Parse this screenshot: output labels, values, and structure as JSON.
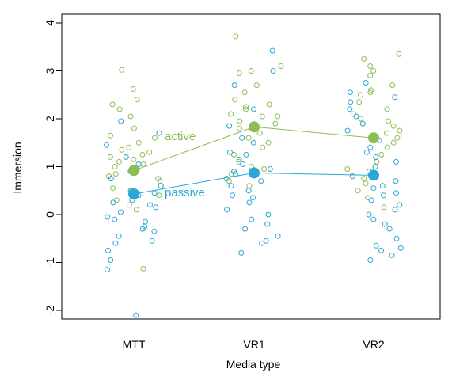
{
  "chart_data": {
    "type": "scatter",
    "xlabel": "Media type",
    "ylabel": "Immersion",
    "categories": [
      "MTT",
      "VR1",
      "VR2"
    ],
    "ylim": [
      -2.3,
      4.3
    ],
    "yticks": [
      -2,
      -1,
      0,
      1,
      2,
      3,
      4
    ],
    "colors": {
      "active": "#8cbd56",
      "passive": "#2ba7d4"
    },
    "series": [
      {
        "name": "active",
        "means": [
          0.92,
          1.83,
          1.6
        ],
        "points": [
          {
            "x": 1,
            "y": [
              2.62,
              2.4,
              2.3,
              2.2,
              2.05,
              1.8,
              1.65,
              1.6,
              1.5,
              1.4,
              1.35,
              1.3,
              1.25,
              1.2,
              1.15,
              1.1,
              1.05,
              1.0,
              0.95,
              0.9,
              0.85,
              0.8,
              0.75,
              0.7,
              0.55,
              0.5,
              0.4,
              0.3,
              0.2,
              0.1,
              -1.13,
              3.02
            ]
          },
          {
            "x": 2,
            "y": [
              3.72,
              3.1,
              3.0,
              2.95,
              2.7,
              2.55,
              2.4,
              2.3,
              2.25,
              2.2,
              2.1,
              2.05,
              1.95,
              1.9,
              1.85,
              1.8,
              1.7,
              1.6,
              1.5,
              1.4,
              1.25,
              1.1,
              1.0,
              0.85,
              0.7,
              0.6,
              0.95,
              2.05
            ]
          },
          {
            "x": 3,
            "y": [
              3.35,
              3.25,
              3.1,
              3.0,
              2.9,
              2.7,
              2.6,
              2.55,
              2.5,
              2.35,
              2.2,
              2.1,
              2.0,
              1.95,
              1.85,
              1.75,
              1.6,
              1.5,
              1.4,
              1.25,
              1.1,
              0.95,
              0.75,
              0.65,
              0.5,
              0.35,
              0.15,
              1.7
            ]
          }
        ]
      },
      {
        "name": "passive",
        "means": [
          0.43,
          0.87,
          0.82
        ],
        "points": [
          {
            "x": 1,
            "y": [
              1.95,
              1.7,
              1.45,
              1.2,
              1.05,
              0.9,
              0.75,
              0.6,
              0.5,
              0.45,
              0.4,
              0.3,
              0.25,
              0.2,
              0.15,
              0.05,
              -0.05,
              -0.1,
              -0.15,
              -0.25,
              -0.3,
              -0.35,
              -0.45,
              -0.55,
              -0.6,
              -0.75,
              -0.95,
              -1.15,
              -2.1
            ]
          },
          {
            "x": 2,
            "y": [
              3.42,
              3.0,
              2.7,
              2.2,
              1.85,
              1.6,
              1.5,
              1.3,
              1.25,
              1.15,
              1.05,
              0.95,
              0.9,
              0.85,
              0.75,
              0.7,
              0.6,
              0.5,
              0.4,
              0.35,
              0.25,
              0.1,
              0.0,
              -0.1,
              -0.2,
              -0.3,
              -0.45,
              -0.55,
              -0.6,
              -0.8
            ]
          },
          {
            "x": 3,
            "y": [
              2.75,
              2.55,
              2.45,
              2.35,
              2.2,
              2.05,
              1.9,
              1.75,
              1.55,
              1.4,
              1.3,
              1.2,
              1.1,
              1.0,
              0.9,
              0.8,
              0.7,
              0.6,
              0.55,
              0.45,
              0.4,
              0.3,
              0.2,
              0.1,
              0.0,
              -0.1,
              -0.2,
              -0.3,
              -0.5,
              -0.65,
              -0.7,
              -0.75,
              -0.85,
              -0.95
            ]
          }
        ]
      }
    ],
    "grid": false,
    "legend": "none"
  }
}
